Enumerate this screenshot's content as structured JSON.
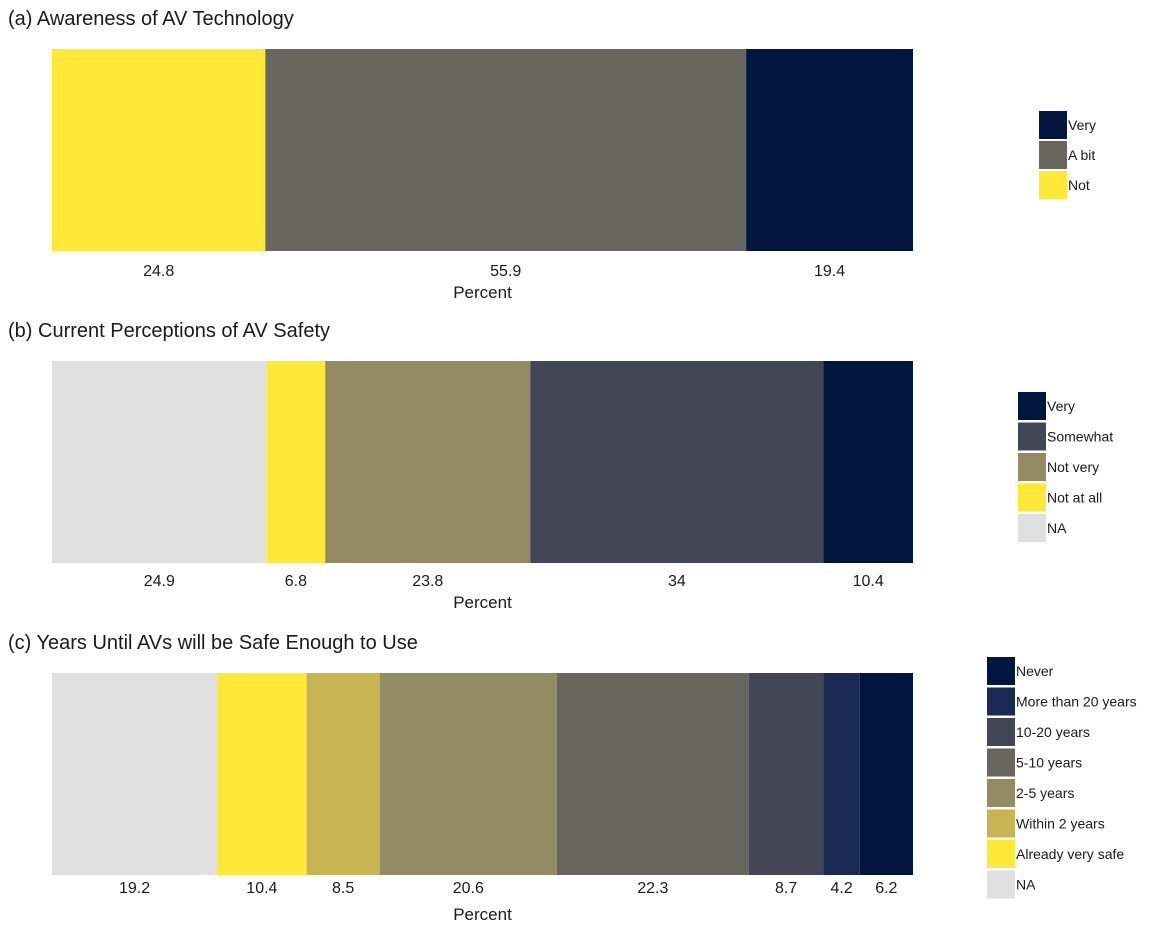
{
  "colors": {
    "never": "#01163f",
    "very": "#01163f",
    "more_than_20": "#1b2a55",
    "somewhat": "#434657",
    "ten_twenty": "#434657",
    "a_bit": "#67665f",
    "five_ten": "#67665f",
    "not_very": "#928b63",
    "two_five": "#928b63",
    "within_2": "#c9b453",
    "not": "#fee838",
    "not_at_all": "#fee838",
    "already_safe": "#fee838",
    "na": "#e0e0e0"
  },
  "chart_data": [
    {
      "type": "bar",
      "orientation": "horizontal-stacked",
      "title": "(a) Awareness of AV Technology",
      "xlabel": "Percent",
      "xlim": [
        0,
        100
      ],
      "segments": [
        {
          "name": "Not",
          "value": 24.8,
          "color": "#fee838"
        },
        {
          "name": "A bit",
          "value": 55.9,
          "color": "#67665f"
        },
        {
          "name": "Very",
          "value": 19.4,
          "color": "#01163f"
        }
      ],
      "legend": [
        "Very",
        "A bit",
        "Not"
      ],
      "legend_position": "right"
    },
    {
      "type": "bar",
      "orientation": "horizontal-stacked",
      "title": "(b) Current Perceptions of AV Safety",
      "xlabel": "Percent",
      "xlim": [
        0,
        100
      ],
      "segments": [
        {
          "name": "NA",
          "value": 24.9,
          "color": "#e0e0e0"
        },
        {
          "name": "Not at all",
          "value": 6.8,
          "color": "#fee838"
        },
        {
          "name": "Not very",
          "value": 23.8,
          "color": "#928b63"
        },
        {
          "name": "Somewhat",
          "value": 34,
          "color": "#434657"
        },
        {
          "name": "Very",
          "value": 10.4,
          "color": "#01163f"
        }
      ],
      "legend": [
        "Very",
        "Somewhat",
        "Not very",
        "Not at all",
        "NA"
      ],
      "legend_position": "right"
    },
    {
      "type": "bar",
      "orientation": "horizontal-stacked",
      "title": "(c) Years Until AVs will be Safe Enough to Use",
      "xlabel": "Percent",
      "xlim": [
        0,
        100
      ],
      "segments": [
        {
          "name": "NA",
          "value": 19.2,
          "color": "#e0e0e0"
        },
        {
          "name": "Already very safe",
          "value": 10.4,
          "color": "#fee838"
        },
        {
          "name": "Within 2 years",
          "value": 8.5,
          "color": "#c9b453"
        },
        {
          "name": "2-5 years",
          "value": 20.6,
          "color": "#928b63"
        },
        {
          "name": "5-10 years",
          "value": 22.3,
          "color": "#67665f"
        },
        {
          "name": "10-20 years",
          "value": 8.7,
          "color": "#434657"
        },
        {
          "name": "More than 20 years",
          "value": 4.2,
          "color": "#1b2a55"
        },
        {
          "name": "Never",
          "value": 6.2,
          "color": "#01163f"
        }
      ],
      "legend": [
        "Never",
        "More than 20 years",
        "10-20 years",
        "5-10 years",
        "2-5 years",
        "Within 2 years",
        "Already very safe",
        "NA"
      ],
      "legend_position": "right"
    }
  ]
}
